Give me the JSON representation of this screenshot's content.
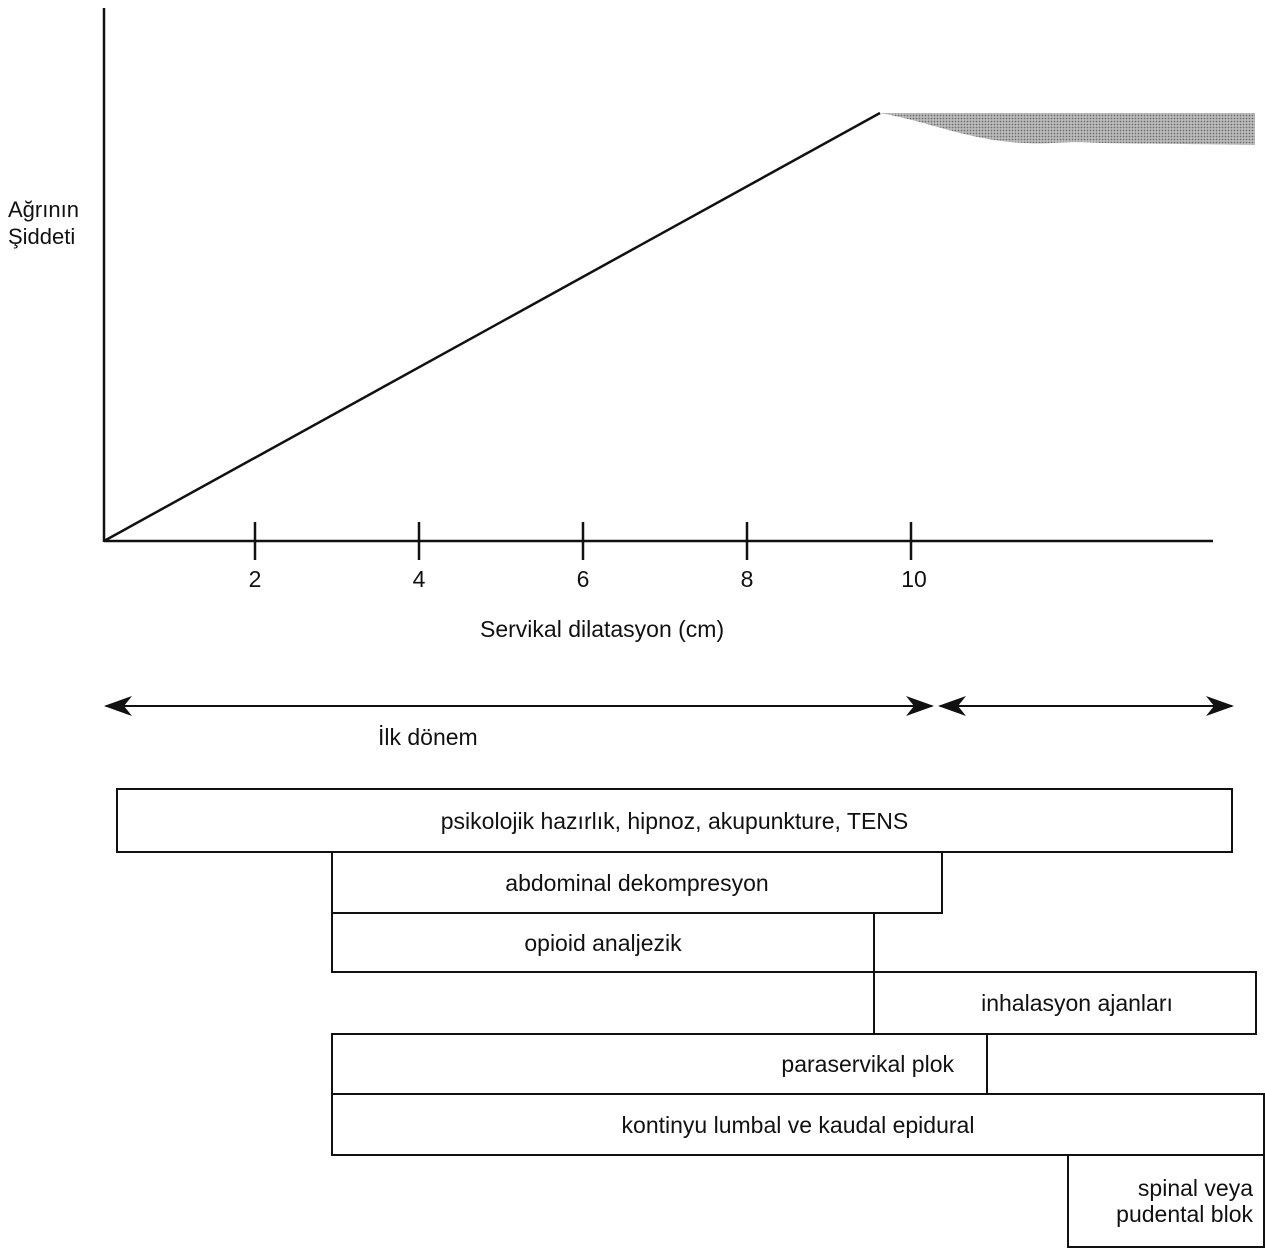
{
  "y_axis_label": "Ağrının\nŞiddeti",
  "x_axis_title": "Servikal dilatasyon (cm)",
  "x_ticks": [
    "2",
    "4",
    "6",
    "8",
    "10"
  ],
  "phase_first": "İlk dönem",
  "pain_curve": {
    "points": [
      [
        0,
        0
      ],
      [
        9.6,
        100
      ]
    ],
    "plateau_after": 9.6
  },
  "methods": [
    {
      "label": "psikolojik hazırlık, hipnoz, akupunkture, TENS"
    },
    {
      "label": "abdominal dekompresyon"
    },
    {
      "label": "opioid analjezik"
    },
    {
      "label": "inhalasyon ajanları"
    },
    {
      "label": "paraservikal plok"
    },
    {
      "label": "kontinyu lumbal ve kaudal epidural"
    },
    {
      "label": "spinal veya\npudental blok"
    }
  ],
  "colors": {
    "line": "#111111",
    "shade": "#9a9a9a"
  }
}
